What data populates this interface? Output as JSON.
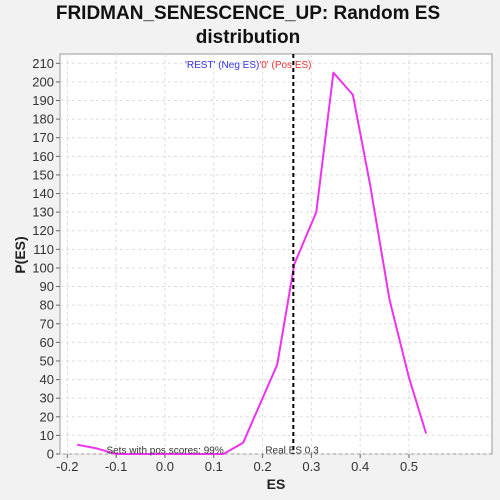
{
  "chart_data": {
    "type": "line",
    "title_lines": [
      "FRIDMAN_SENESCENCE_UP: Random ES",
      "distribution"
    ],
    "xlabel": "ES",
    "ylabel": "P(ES)",
    "xlim": [
      -0.215,
      0.67
    ],
    "ylim": [
      0,
      215
    ],
    "x_ticks": [
      -0.2,
      -0.1,
      0.0,
      0.1,
      0.2,
      0.3,
      0.4,
      0.5
    ],
    "x_tick_labels": [
      "-0.2",
      "-0.1",
      "0.0",
      "0.1",
      "0.2",
      "0.3",
      "0.4",
      "0.5"
    ],
    "y_ticks": [
      0,
      10,
      20,
      30,
      40,
      50,
      60,
      70,
      80,
      90,
      100,
      110,
      120,
      130,
      140,
      150,
      160,
      170,
      180,
      190,
      200,
      210
    ],
    "grid": true,
    "series": [
      {
        "color": "#ee33ee",
        "x": [
          -0.18,
          -0.14,
          -0.1,
          -0.06,
          -0.02,
          0.02,
          0.06,
          0.1,
          0.12,
          0.16,
          0.23,
          0.265,
          0.31,
          0.345,
          0.385,
          0.42,
          0.46,
          0.5,
          0.535
        ],
        "y": [
          5,
          3,
          0,
          0,
          0,
          0,
          0,
          0,
          0,
          6,
          48,
          102,
          130,
          205,
          193,
          145,
          83,
          41,
          11
        ]
      }
    ],
    "real_es": 0.263,
    "annotations": {
      "neg_label": "'REST' (Neg ES)",
      "pos_label": "'0' (Pos ES)",
      "neg_color": "#3333ee",
      "pos_color": "#ee3333",
      "sets_pos": "Sets with pos scores: 99%",
      "real_es_label": "Real ES 0.3"
    }
  }
}
